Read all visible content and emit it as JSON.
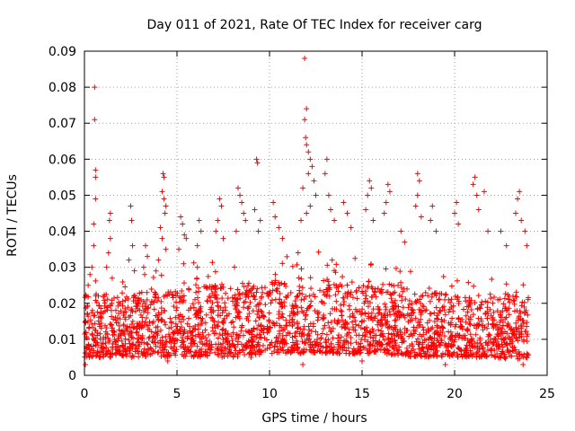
{
  "chart_data": {
    "type": "scatter",
    "title": "Day 011 of 2021, Rate Of TEC Index for receiver carg",
    "xlabel": "GPS time / hours",
    "ylabel": "ROTI / TECUs",
    "xlim": [
      0,
      25
    ],
    "ylim": [
      0,
      0.09
    ],
    "x_ticks": [
      0,
      5,
      10,
      15,
      20,
      25
    ],
    "x_tick_labels": [
      "0",
      "5",
      "10",
      "15",
      "20",
      "25"
    ],
    "y_ticks": [
      0,
      0.01,
      0.02,
      0.03,
      0.04,
      0.05,
      0.06,
      0.07,
      0.08,
      0.09
    ],
    "y_tick_labels": [
      "0",
      "0.01",
      "0.02",
      "0.03",
      "0.04",
      "0.05",
      "0.06",
      "0.07",
      "0.08",
      "0.09"
    ],
    "grid": true,
    "marker": "+",
    "color": "#ff0000",
    "series": [
      {
        "name": "ROTI",
        "points": [
          [
            0.55,
            0.08
          ],
          [
            0.55,
            0.071
          ],
          [
            0.6,
            0.057
          ],
          [
            0.6,
            0.055
          ],
          [
            0.6,
            0.049
          ],
          [
            0.5,
            0.042
          ],
          [
            0.5,
            0.036
          ],
          [
            0.4,
            0.03
          ],
          [
            0.3,
            0.028
          ],
          [
            0.2,
            0.025
          ],
          [
            0.1,
            0.022
          ],
          [
            0.15,
            0.019
          ],
          [
            1.4,
            0.045
          ],
          [
            1.35,
            0.043
          ],
          [
            1.4,
            0.038
          ],
          [
            1.3,
            0.034
          ],
          [
            1.2,
            0.03
          ],
          [
            1.5,
            0.027
          ],
          [
            2.5,
            0.047
          ],
          [
            2.55,
            0.043
          ],
          [
            2.6,
            0.036
          ],
          [
            2.4,
            0.032
          ],
          [
            2.7,
            0.029
          ],
          [
            3.3,
            0.036
          ],
          [
            3.4,
            0.033
          ],
          [
            3.2,
            0.03
          ],
          [
            4.25,
            0.056
          ],
          [
            4.3,
            0.055
          ],
          [
            4.2,
            0.051
          ],
          [
            4.3,
            0.049
          ],
          [
            4.4,
            0.047
          ],
          [
            4.35,
            0.045
          ],
          [
            4.1,
            0.041
          ],
          [
            4.2,
            0.038
          ],
          [
            4.4,
            0.035
          ],
          [
            4.0,
            0.032
          ],
          [
            5.2,
            0.044
          ],
          [
            5.3,
            0.042
          ],
          [
            5.4,
            0.039
          ],
          [
            5.5,
            0.038
          ],
          [
            5.1,
            0.035
          ],
          [
            6.2,
            0.043
          ],
          [
            6.3,
            0.04
          ],
          [
            6.1,
            0.036
          ],
          [
            7.3,
            0.049
          ],
          [
            7.4,
            0.047
          ],
          [
            7.2,
            0.043
          ],
          [
            7.1,
            0.04
          ],
          [
            7.5,
            0.038
          ],
          [
            8.3,
            0.052
          ],
          [
            8.4,
            0.05
          ],
          [
            8.5,
            0.048
          ],
          [
            8.6,
            0.045
          ],
          [
            8.7,
            0.043
          ],
          [
            8.2,
            0.04
          ],
          [
            9.3,
            0.06
          ],
          [
            9.35,
            0.059
          ],
          [
            9.2,
            0.046
          ],
          [
            9.5,
            0.043
          ],
          [
            9.4,
            0.04
          ],
          [
            10.2,
            0.048
          ],
          [
            10.3,
            0.044
          ],
          [
            10.5,
            0.041
          ],
          [
            10.7,
            0.038
          ],
          [
            11.9,
            0.088
          ],
          [
            12.0,
            0.074
          ],
          [
            11.9,
            0.071
          ],
          [
            11.95,
            0.066
          ],
          [
            12.0,
            0.064
          ],
          [
            12.1,
            0.062
          ],
          [
            12.2,
            0.06
          ],
          [
            12.3,
            0.058
          ],
          [
            12.1,
            0.056
          ],
          [
            12.4,
            0.054
          ],
          [
            11.8,
            0.052
          ],
          [
            12.5,
            0.05
          ],
          [
            12.2,
            0.047
          ],
          [
            12.0,
            0.045
          ],
          [
            11.7,
            0.043
          ],
          [
            13.1,
            0.06
          ],
          [
            13.0,
            0.056
          ],
          [
            13.2,
            0.05
          ],
          [
            13.3,
            0.046
          ],
          [
            13.5,
            0.043
          ],
          [
            14.0,
            0.048
          ],
          [
            14.2,
            0.045
          ],
          [
            14.4,
            0.041
          ],
          [
            15.4,
            0.054
          ],
          [
            15.5,
            0.052
          ],
          [
            15.3,
            0.05
          ],
          [
            15.2,
            0.046
          ],
          [
            15.6,
            0.043
          ],
          [
            16.4,
            0.053
          ],
          [
            16.5,
            0.051
          ],
          [
            16.3,
            0.048
          ],
          [
            16.2,
            0.045
          ],
          [
            17.1,
            0.04
          ],
          [
            17.3,
            0.037
          ],
          [
            18.0,
            0.056
          ],
          [
            18.1,
            0.054
          ],
          [
            18.0,
            0.05
          ],
          [
            17.9,
            0.047
          ],
          [
            18.2,
            0.044
          ],
          [
            18.8,
            0.047
          ],
          [
            18.7,
            0.043
          ],
          [
            19.0,
            0.04
          ],
          [
            20.1,
            0.048
          ],
          [
            20.0,
            0.045
          ],
          [
            20.2,
            0.042
          ],
          [
            21.1,
            0.055
          ],
          [
            21.0,
            0.053
          ],
          [
            21.2,
            0.05
          ],
          [
            21.3,
            0.046
          ],
          [
            21.6,
            0.051
          ],
          [
            21.8,
            0.04
          ],
          [
            22.5,
            0.04
          ],
          [
            22.8,
            0.036
          ],
          [
            23.5,
            0.051
          ],
          [
            23.4,
            0.049
          ],
          [
            23.3,
            0.045
          ],
          [
            23.6,
            0.043
          ],
          [
            23.8,
            0.04
          ],
          [
            23.9,
            0.036
          ],
          [
            0.05,
            0.003
          ],
          [
            4.5,
            0.004
          ],
          [
            9.0,
            0.005
          ],
          [
            11.8,
            0.003
          ],
          [
            15.0,
            0.004
          ],
          [
            19.5,
            0.003
          ],
          [
            23.7,
            0.003
          ]
        ],
        "dense_band": {
          "x_range": [
            0,
            24
          ],
          "y_envelope_hours": [
            0,
            2,
            4,
            6,
            8,
            10,
            12,
            14,
            16,
            18,
            20,
            22,
            24
          ],
          "y_envelope_low": [
            0.005,
            0.005,
            0.005,
            0.005,
            0.005,
            0.006,
            0.006,
            0.006,
            0.006,
            0.005,
            0.005,
            0.005,
            0.004
          ],
          "y_envelope_high": [
            0.03,
            0.028,
            0.03,
            0.032,
            0.033,
            0.033,
            0.035,
            0.033,
            0.033,
            0.03,
            0.028,
            0.028,
            0.03
          ]
        }
      }
    ]
  }
}
